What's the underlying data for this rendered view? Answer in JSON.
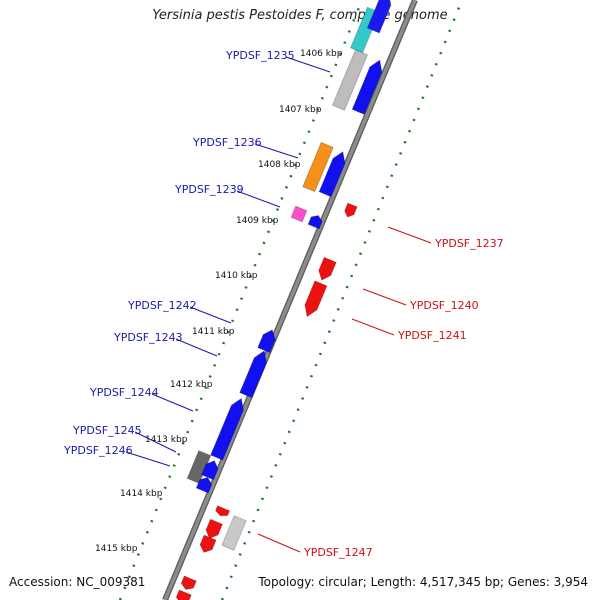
{
  "title": "Yersinia pestis Pestoides F, complete genome",
  "accession_text": "Accession: NC_009381",
  "topology_text": "Topology: circular; Length: 4,517,345 bp; Genes: 3,954",
  "colors": {
    "backbone": "#8c8c8c",
    "tick": "#1e7a1e",
    "forward_label": "#1a1aaa",
    "reverse_label": "#cc1111"
  },
  "scale_labels": [
    "1406 kbp",
    "1407 kbp",
    "1408 kbp",
    "1409 kbp",
    "1410 kbp",
    "1411 kbp",
    "1412 kbp",
    "1413 kbp",
    "1414 kbp",
    "1415 kbp"
  ],
  "forward_genes": [
    "YPDSF_1235",
    "YPDSF_1236",
    "YPDSF_1239",
    "YPDSF_1242",
    "YPDSF_1243",
    "YPDSF_1244",
    "YPDSF_1245",
    "YPDSF_1246"
  ],
  "reverse_genes": [
    "YPDSF_1237",
    "YPDSF_1240",
    "YPDSF_1241",
    "YPDSF_1247"
  ]
}
